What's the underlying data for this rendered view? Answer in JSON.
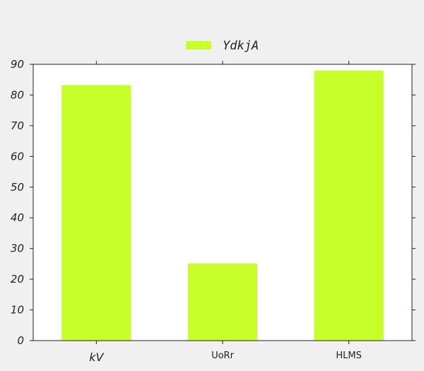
{
  "chart_data": {
    "type": "bar",
    "categories": [
      "kV",
      "UoRr",
      "HLMS"
    ],
    "series": [
      {
        "name": "YdkjA",
        "values": [
          83.2,
          25.1,
          88.0
        ],
        "color": "#c6ff2a"
      }
    ],
    "title": "",
    "xlabel": "",
    "ylabel": "",
    "ylim": [
      0,
      90
    ],
    "yticks": [
      0,
      10,
      20,
      30,
      40,
      50,
      60,
      70,
      80,
      90
    ],
    "grid": false,
    "legend_position": "top-center",
    "colors": {
      "figure_background": "#f0f0f0",
      "plot_background": "#ffffff",
      "axis": "#222222"
    }
  }
}
